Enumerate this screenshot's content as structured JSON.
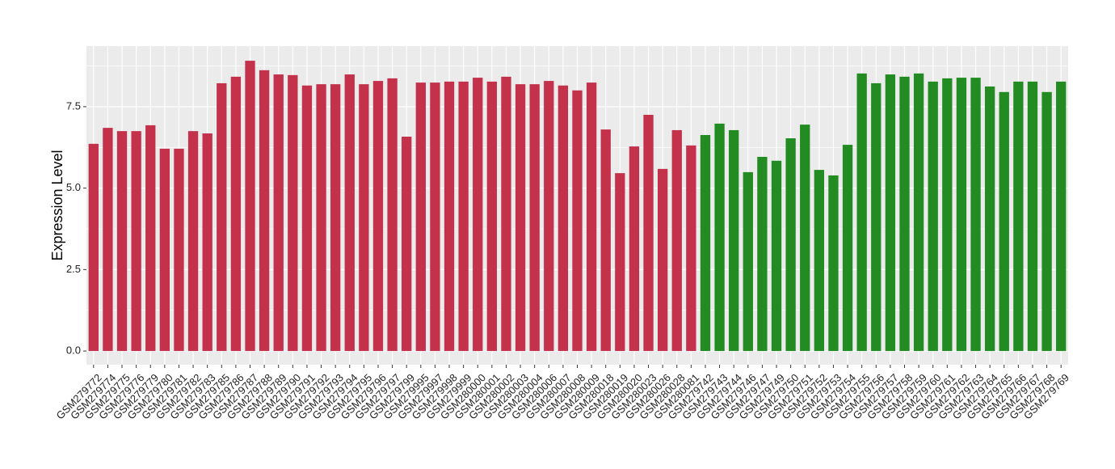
{
  "chart_data": {
    "type": "bar",
    "y_label": "Expression Level",
    "categories": [
      "GSM279772",
      "GSM279774",
      "GSM279775",
      "GSM279776",
      "GSM279779",
      "GSM279780",
      "GSM279781",
      "GSM279782",
      "GSM279783",
      "GSM279785",
      "GSM279786",
      "GSM279787",
      "GSM279788",
      "GSM279789",
      "GSM279790",
      "GSM279791",
      "GSM279792",
      "GSM279793",
      "GSM279794",
      "GSM279795",
      "GSM279796",
      "GSM279797",
      "GSM279799",
      "GSM279995",
      "GSM279997",
      "GSM279998",
      "GSM279999",
      "GSM280000",
      "GSM280001",
      "GSM280002",
      "GSM280003",
      "GSM280004",
      "GSM280006",
      "GSM280007",
      "GSM280008",
      "GSM280009",
      "GSM280018",
      "GSM280019",
      "GSM280020",
      "GSM280023",
      "GSM280026",
      "GSM280028",
      "GSM280081",
      "GSM279742",
      "GSM279743",
      "GSM279744",
      "GSM279746",
      "GSM279747",
      "GSM279749",
      "GSM279750",
      "GSM279751",
      "GSM279752",
      "GSM279753",
      "GSM279754",
      "GSM279755",
      "GSM279756",
      "GSM279757",
      "GSM279758",
      "GSM279759",
      "GSM279760",
      "GSM279761",
      "GSM279762",
      "GSM279763",
      "GSM279764",
      "GSM279765",
      "GSM279766",
      "GSM279767",
      "GSM279768",
      "GSM279769"
    ],
    "values": [
      6.36,
      6.85,
      6.75,
      6.75,
      6.93,
      6.21,
      6.21,
      6.75,
      6.68,
      8.22,
      8.42,
      8.91,
      8.62,
      8.49,
      8.47,
      8.15,
      8.19,
      8.19,
      8.49,
      8.19,
      8.29,
      8.37,
      6.58,
      8.24,
      8.24,
      8.27,
      8.27,
      8.39,
      8.27,
      8.42,
      8.19,
      8.19,
      8.29,
      8.15,
      8.0,
      8.24,
      6.8,
      5.46,
      6.28,
      7.25,
      5.59,
      6.78,
      6.31,
      6.63,
      6.98,
      6.78,
      5.49,
      5.96,
      5.84,
      6.53,
      6.95,
      5.56,
      5.39,
      6.33,
      8.52,
      8.22,
      8.49,
      8.42,
      8.52,
      8.27,
      8.37,
      8.39,
      8.39,
      8.12,
      7.95,
      8.27,
      8.27,
      7.95,
      8.27
    ],
    "colors": [
      "#c3314b",
      "#c3314b",
      "#c3314b",
      "#c3314b",
      "#c3314b",
      "#c3314b",
      "#c3314b",
      "#c3314b",
      "#c3314b",
      "#c3314b",
      "#c3314b",
      "#c3314b",
      "#c3314b",
      "#c3314b",
      "#c3314b",
      "#c3314b",
      "#c3314b",
      "#c3314b",
      "#c3314b",
      "#c3314b",
      "#c3314b",
      "#c3314b",
      "#c3314b",
      "#c3314b",
      "#c3314b",
      "#c3314b",
      "#c3314b",
      "#c3314b",
      "#c3314b",
      "#c3314b",
      "#c3314b",
      "#c3314b",
      "#c3314b",
      "#c3314b",
      "#c3314b",
      "#c3314b",
      "#c3314b",
      "#c3314b",
      "#c3314b",
      "#c3314b",
      "#c3314b",
      "#c3314b",
      "#c3314b",
      "#228b22",
      "#228b22",
      "#228b22",
      "#228b22",
      "#228b22",
      "#228b22",
      "#228b22",
      "#228b22",
      "#228b22",
      "#228b22",
      "#228b22",
      "#228b22",
      "#228b22",
      "#228b22",
      "#228b22",
      "#228b22",
      "#228b22",
      "#228b22",
      "#228b22",
      "#228b22",
      "#228b22",
      "#228b22",
      "#228b22",
      "#228b22",
      "#228b22",
      "#228b22"
    ],
    "ylim": [
      -0.42,
      9.36
    ],
    "yticks": [
      {
        "value": 0,
        "label": "0.0"
      },
      2.5,
      {
        "value": 5,
        "label": "5.0"
      },
      7.5
    ],
    "grid": true
  }
}
